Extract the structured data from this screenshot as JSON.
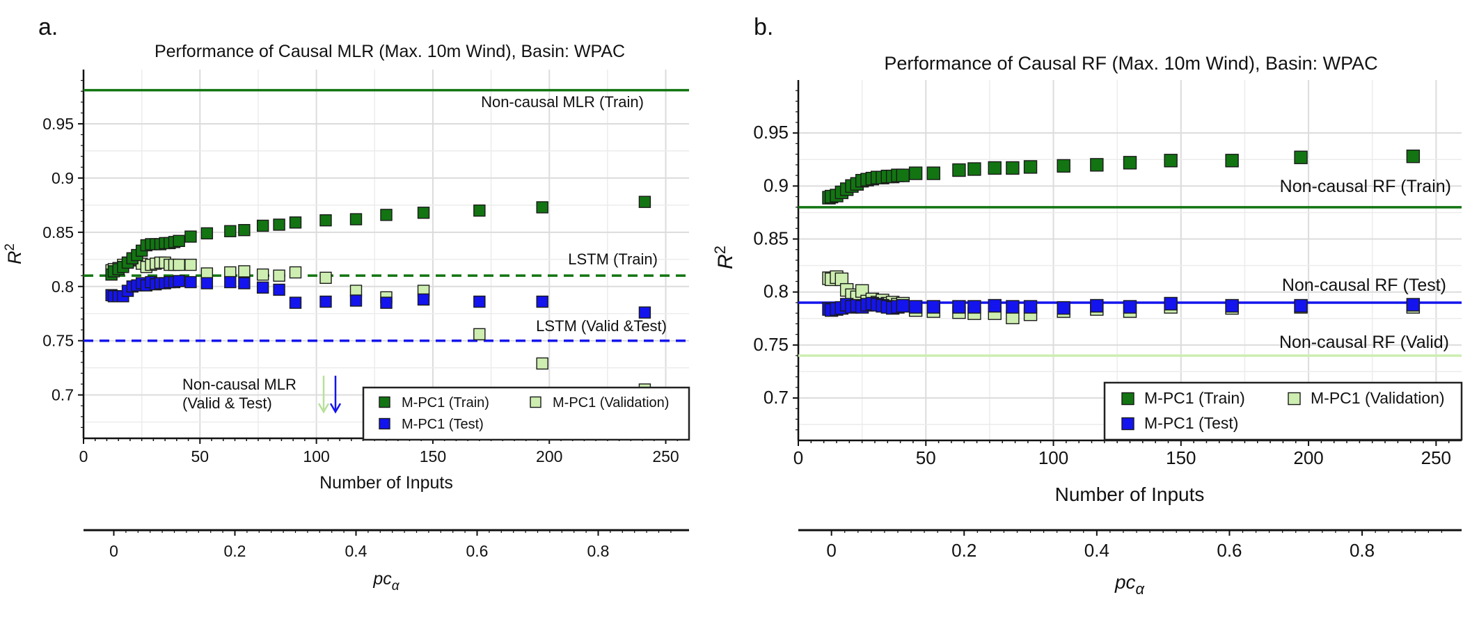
{
  "chart_data": [
    {
      "type": "scatter",
      "panel_label": "a.",
      "title": "Performance of Causal MLR (Max. 10m Wind), Basin: WPAC",
      "xlabel": "Number of Inputs",
      "ylabel_base": "R",
      "ylabel_sup": "2",
      "xlim": [
        0,
        260
      ],
      "ylim": [
        0.66,
        1.0
      ],
      "xticks": [
        0,
        50,
        100,
        150,
        200,
        250
      ],
      "xtick_labels": [
        "0",
        "50",
        "100",
        "150",
        "200",
        "250"
      ],
      "yticks": [
        0.7,
        0.75,
        0.8,
        0.85,
        0.9,
        0.95
      ],
      "ytick_labels": [
        "0.7",
        "0.75",
        "0.8",
        "0.85",
        "0.9",
        "0.95"
      ],
      "grid": true,
      "series": [
        {
          "name": "M-PC1 (Train)",
          "color": "#127512",
          "x": [
            12,
            13,
            15,
            17,
            19,
            21,
            23,
            25,
            27,
            29,
            31,
            33,
            35,
            37,
            39,
            41,
            46,
            53,
            63,
            69,
            77,
            84,
            91,
            104,
            117,
            130,
            146,
            170,
            197,
            241
          ],
          "y": [
            0.811,
            0.814,
            0.816,
            0.818,
            0.822,
            0.826,
            0.829,
            0.833,
            0.838,
            0.839,
            0.839,
            0.839,
            0.84,
            0.84,
            0.841,
            0.842,
            0.846,
            0.849,
            0.851,
            0.852,
            0.856,
            0.857,
            0.859,
            0.861,
            0.862,
            0.866,
            0.868,
            0.87,
            0.873,
            0.878
          ]
        },
        {
          "name": "M-PC1 (Validation)",
          "color": "#cdeeb0",
          "x": [
            12,
            13,
            15,
            17,
            19,
            21,
            23,
            25,
            27,
            29,
            31,
            33,
            35,
            37,
            39,
            41,
            46,
            53,
            63,
            69,
            77,
            84,
            91,
            104,
            117,
            130,
            146,
            170,
            197,
            241
          ],
          "y": [
            0.815,
            0.816,
            0.817,
            0.82,
            0.822,
            0.824,
            0.825,
            0.821,
            0.818,
            0.82,
            0.821,
            0.822,
            0.822,
            0.82,
            0.82,
            0.82,
            0.82,
            0.812,
            0.813,
            0.814,
            0.811,
            0.81,
            0.813,
            0.808,
            0.796,
            0.79,
            0.796,
            0.756,
            0.729,
            0.705
          ]
        },
        {
          "name": "M-PC1 (Test)",
          "color": "#1414ee",
          "x": [
            12,
            13,
            15,
            17,
            19,
            21,
            23,
            25,
            27,
            29,
            31,
            33,
            35,
            37,
            39,
            41,
            46,
            53,
            63,
            69,
            77,
            84,
            91,
            104,
            117,
            130,
            146,
            170,
            197,
            241
          ],
          "y": [
            0.792,
            0.791,
            0.791,
            0.791,
            0.796,
            0.8,
            0.801,
            0.803,
            0.801,
            0.804,
            0.802,
            0.803,
            0.803,
            0.804,
            0.804,
            0.805,
            0.804,
            0.803,
            0.804,
            0.803,
            0.799,
            0.797,
            0.785,
            0.786,
            0.787,
            0.785,
            0.788,
            0.786,
            0.786,
            0.776
          ]
        }
      ],
      "reference_lines": [
        {
          "label": "Non-causal MLR (Train)",
          "y": 0.981,
          "color": "#127512",
          "style": "solid"
        },
        {
          "label": "LSTM (Train)",
          "y": 0.81,
          "color": "#127512",
          "style": "dashed"
        },
        {
          "label": "LSTM (Valid &Test)",
          "y": 0.75,
          "color": "#1414ee",
          "style": "dashed"
        }
      ],
      "annotation": {
        "line1": "Non-causal MLR",
        "line2": "(Valid & Test)"
      },
      "secondary_axis": {
        "label": "pc",
        "label_sub": "α",
        "ticks": [
          0,
          0.2,
          0.4,
          0.6,
          0.8
        ],
        "tick_labels": [
          "0",
          "0.2",
          "0.4",
          "0.6",
          "0.8"
        ],
        "range": [
          -0.05,
          0.95
        ]
      },
      "legend": {
        "placement": "lower-right",
        "items": [
          "M-PC1 (Train)",
          "M-PC1 (Validation)",
          "M-PC1 (Test)"
        ]
      }
    },
    {
      "type": "scatter",
      "panel_label": "b.",
      "title": "Performance of Causal RF (Max. 10m Wind), Basin: WPAC",
      "xlabel": "Number of Inputs",
      "ylabel_base": "R",
      "ylabel_sup": "2",
      "xlim": [
        0,
        260
      ],
      "ylim": [
        0.66,
        1.0
      ],
      "xticks": [
        0,
        50,
        100,
        150,
        200,
        250
      ],
      "xtick_labels": [
        "0",
        "50",
        "100",
        "150",
        "200",
        "250"
      ],
      "yticks": [
        0.7,
        0.75,
        0.8,
        0.85,
        0.9,
        0.95
      ],
      "ytick_labels": [
        "0.7",
        "0.75",
        "0.8",
        "0.85",
        "0.9",
        "0.95"
      ],
      "grid": true,
      "series": [
        {
          "name": "M-PC1 (Train)",
          "color": "#127512",
          "x": [
            12,
            13,
            15,
            17,
            19,
            21,
            23,
            25,
            27,
            29,
            31,
            33,
            35,
            37,
            39,
            41,
            46,
            53,
            63,
            69,
            77,
            84,
            91,
            104,
            117,
            130,
            146,
            170,
            197,
            241
          ],
          "y": [
            0.889,
            0.89,
            0.891,
            0.894,
            0.897,
            0.9,
            0.902,
            0.905,
            0.906,
            0.907,
            0.908,
            0.908,
            0.909,
            0.909,
            0.91,
            0.91,
            0.912,
            0.912,
            0.915,
            0.916,
            0.917,
            0.917,
            0.918,
            0.919,
            0.92,
            0.922,
            0.924,
            0.924,
            0.927,
            0.928
          ]
        },
        {
          "name": "M-PC1 (Validation)",
          "color": "#cdeeb0",
          "x": [
            12,
            13,
            15,
            17,
            19,
            21,
            23,
            25,
            27,
            29,
            31,
            33,
            35,
            37,
            39,
            41,
            46,
            53,
            63,
            69,
            77,
            84,
            91,
            104,
            117,
            130,
            146,
            170,
            197,
            241
          ],
          "y": [
            0.813,
            0.812,
            0.814,
            0.812,
            0.802,
            0.797,
            0.795,
            0.801,
            0.791,
            0.793,
            0.79,
            0.792,
            0.789,
            0.79,
            0.788,
            0.789,
            0.783,
            0.782,
            0.781,
            0.78,
            0.78,
            0.776,
            0.779,
            0.782,
            0.784,
            0.782,
            0.786,
            0.785,
            0.786,
            0.786
          ]
        },
        {
          "name": "M-PC1 (Test)",
          "color": "#1414ee",
          "x": [
            12,
            13,
            15,
            17,
            19,
            21,
            23,
            25,
            27,
            29,
            31,
            33,
            35,
            37,
            39,
            41,
            46,
            53,
            63,
            69,
            77,
            84,
            91,
            104,
            117,
            130,
            146,
            170,
            197,
            241
          ],
          "y": [
            0.784,
            0.783,
            0.784,
            0.785,
            0.788,
            0.786,
            0.787,
            0.786,
            0.788,
            0.789,
            0.788,
            0.787,
            0.786,
            0.785,
            0.786,
            0.787,
            0.786,
            0.786,
            0.786,
            0.786,
            0.787,
            0.786,
            0.786,
            0.785,
            0.787,
            0.786,
            0.789,
            0.787,
            0.787,
            0.788
          ]
        }
      ],
      "reference_lines": [
        {
          "label": "Non-causal RF (Train)",
          "y": 0.88,
          "color": "#127512",
          "style": "solid"
        },
        {
          "label": "Non-causal RF (Test)",
          "y": 0.79,
          "color": "#1414ee",
          "style": "solid"
        },
        {
          "label": "Non-causal RF (Valid)",
          "y": 0.74,
          "color": "#cdeeb0",
          "style": "solid"
        }
      ],
      "secondary_axis": {
        "label": "pc",
        "label_sub": "α",
        "ticks": [
          0,
          0.2,
          0.4,
          0.6,
          0.8
        ],
        "tick_labels": [
          "0",
          "0.2",
          "0.4",
          "0.6",
          "0.8"
        ],
        "range": [
          -0.05,
          0.95
        ]
      },
      "legend": {
        "placement": "lower-right",
        "items": [
          "M-PC1 (Train)",
          "M-PC1 (Validation)",
          "M-PC1 (Test)"
        ]
      }
    }
  ]
}
